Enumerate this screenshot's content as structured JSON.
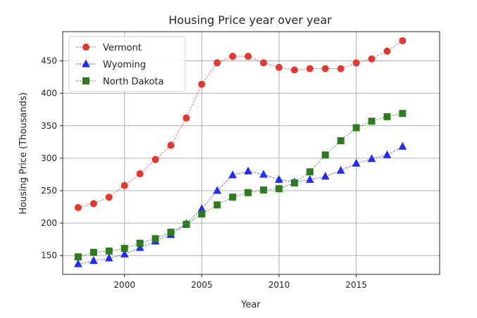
{
  "chart_data": {
    "type": "line",
    "title": "Housing Price year over year",
    "xlabel": "Year",
    "ylabel": "Housing Price (Thousands)",
    "x": [
      1997,
      1998,
      1999,
      2000,
      2001,
      2002,
      2003,
      2004,
      2005,
      2006,
      2007,
      2008,
      2009,
      2010,
      2011,
      2012,
      2013,
      2014,
      2015,
      2016,
      2017,
      2018
    ],
    "xlim": [
      1996,
      2020.4
    ],
    "ylim": [
      121,
      495
    ],
    "xticks": [
      2000,
      2005,
      2010,
      2015
    ],
    "yticks": [
      150,
      200,
      250,
      300,
      350,
      400,
      450
    ],
    "grid": true,
    "legend_position": "upper-left",
    "series": [
      {
        "name": "Vermont",
        "color": "#e8362a",
        "marker": "circle",
        "values": [
          224,
          230,
          240,
          258,
          276,
          298,
          320,
          362,
          414,
          447,
          457,
          457,
          447,
          440,
          436,
          438,
          438,
          438,
          447,
          453,
          465,
          481
        ]
      },
      {
        "name": "Wyoming",
        "color": "#1f2bff",
        "marker": "triangle",
        "values": [
          137,
          142,
          146,
          152,
          162,
          172,
          182,
          199,
          222,
          250,
          274,
          280,
          275,
          267,
          263,
          267,
          272,
          281,
          292,
          299,
          305,
          318
        ]
      },
      {
        "name": "North Dakota",
        "color": "#2d7d1c",
        "marker": "square",
        "values": [
          148,
          155,
          157,
          161,
          169,
          176,
          186,
          198,
          214,
          228,
          240,
          247,
          251,
          253,
          262,
          279,
          305,
          327,
          347,
          357,
          364,
          369
        ]
      }
    ]
  }
}
